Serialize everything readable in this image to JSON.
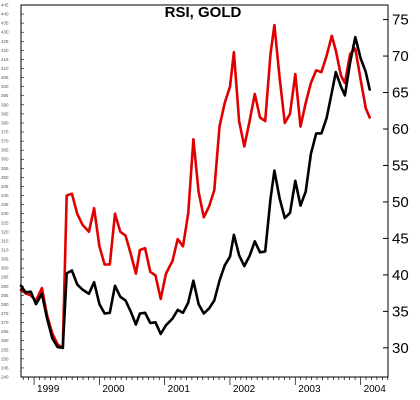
{
  "chart_data": {
    "type": "line",
    "title": "RSI, GOLD",
    "x_labels": [
      "1999",
      "2000",
      "2001",
      "2002",
      "2003",
      "2004"
    ],
    "x_start": 1998.8,
    "x_end": 2004.42,
    "y_right": {
      "min": 26,
      "max": 77,
      "ticks": [
        30,
        35,
        40,
        45,
        50,
        55,
        60,
        65,
        70,
        75
      ]
    },
    "y_left": {
      "min": 240,
      "max": 445,
      "step": 5
    },
    "series": [
      {
        "color": "#e00000",
        "axis": "left",
        "points": [
          [
            1998.8,
            288
          ],
          [
            1998.87,
            286
          ],
          [
            1998.95,
            285
          ],
          [
            1999.03,
            282
          ],
          [
            1999.12,
            289
          ],
          [
            1999.2,
            274
          ],
          [
            1999.28,
            264
          ],
          [
            1999.36,
            258
          ],
          [
            1999.44,
            256
          ],
          [
            1999.5,
            340
          ],
          [
            1999.58,
            341
          ],
          [
            1999.66,
            330
          ],
          [
            1999.74,
            324
          ],
          [
            1999.84,
            320
          ],
          [
            1999.92,
            333
          ],
          [
            2000.0,
            312
          ],
          [
            2000.08,
            302
          ],
          [
            2000.16,
            302
          ],
          [
            2000.24,
            330
          ],
          [
            2000.32,
            320
          ],
          [
            2000.4,
            318
          ],
          [
            2000.48,
            308
          ],
          [
            2000.56,
            297
          ],
          [
            2000.62,
            310
          ],
          [
            2000.7,
            311
          ],
          [
            2000.78,
            298
          ],
          [
            2000.86,
            296
          ],
          [
            2000.94,
            283
          ],
          [
            2001.02,
            297
          ],
          [
            2001.12,
            304
          ],
          [
            2001.2,
            316
          ],
          [
            2001.28,
            312
          ],
          [
            2001.36,
            330
          ],
          [
            2001.44,
            371
          ],
          [
            2001.52,
            342
          ],
          [
            2001.6,
            328
          ],
          [
            2001.68,
            334
          ],
          [
            2001.76,
            343
          ],
          [
            2001.84,
            378
          ],
          [
            2001.92,
            391
          ],
          [
            2002.0,
            400
          ],
          [
            2002.06,
            419
          ],
          [
            2002.14,
            381
          ],
          [
            2002.22,
            367
          ],
          [
            2002.3,
            381
          ],
          [
            2002.38,
            396
          ],
          [
            2002.46,
            383
          ],
          [
            2002.54,
            381
          ],
          [
            2002.62,
            418
          ],
          [
            2002.68,
            434
          ],
          [
            2002.76,
            405
          ],
          [
            2002.84,
            380
          ],
          [
            2002.92,
            385
          ],
          [
            2003.0,
            407
          ],
          [
            2003.08,
            378
          ],
          [
            2003.16,
            391
          ],
          [
            2003.24,
            402
          ],
          [
            2003.32,
            409
          ],
          [
            2003.4,
            408
          ],
          [
            2003.48,
            417
          ],
          [
            2003.56,
            428
          ],
          [
            2003.62,
            420
          ],
          [
            2003.7,
            406
          ],
          [
            2003.76,
            402
          ],
          [
            2003.84,
            418
          ],
          [
            2003.92,
            421
          ],
          [
            2004.0,
            404
          ],
          [
            2004.08,
            388
          ],
          [
            2004.14,
            383
          ]
        ]
      },
      {
        "color": "#000000",
        "axis": "right",
        "points": [
          [
            1998.8,
            38.5
          ],
          [
            1998.87,
            37.6
          ],
          [
            1998.95,
            37.7
          ],
          [
            1999.03,
            36.0
          ],
          [
            1999.12,
            37.4
          ],
          [
            1999.2,
            34.0
          ],
          [
            1999.28,
            31.3
          ],
          [
            1999.36,
            30.1
          ],
          [
            1999.44,
            30.0
          ],
          [
            1999.5,
            40.2
          ],
          [
            1999.58,
            40.6
          ],
          [
            1999.66,
            38.7
          ],
          [
            1999.74,
            38.0
          ],
          [
            1999.84,
            37.4
          ],
          [
            1999.92,
            39.0
          ],
          [
            2000.0,
            36.0
          ],
          [
            2000.08,
            34.7
          ],
          [
            2000.16,
            34.8
          ],
          [
            2000.24,
            38.5
          ],
          [
            2000.32,
            37.0
          ],
          [
            2000.4,
            36.5
          ],
          [
            2000.48,
            35.0
          ],
          [
            2000.56,
            33.2
          ],
          [
            2000.62,
            34.7
          ],
          [
            2000.7,
            34.8
          ],
          [
            2000.78,
            33.4
          ],
          [
            2000.86,
            33.5
          ],
          [
            2000.94,
            31.9
          ],
          [
            2001.02,
            33.1
          ],
          [
            2001.12,
            34.0
          ],
          [
            2001.2,
            35.2
          ],
          [
            2001.28,
            34.8
          ],
          [
            2001.36,
            36.2
          ],
          [
            2001.44,
            39.2
          ],
          [
            2001.52,
            36.0
          ],
          [
            2001.6,
            34.7
          ],
          [
            2001.68,
            35.4
          ],
          [
            2001.76,
            36.5
          ],
          [
            2001.84,
            39.2
          ],
          [
            2001.92,
            41.3
          ],
          [
            2002.0,
            42.5
          ],
          [
            2002.06,
            45.5
          ],
          [
            2002.14,
            42.7
          ],
          [
            2002.22,
            41.2
          ],
          [
            2002.3,
            42.6
          ],
          [
            2002.38,
            44.6
          ],
          [
            2002.46,
            43.1
          ],
          [
            2002.54,
            43.2
          ],
          [
            2002.62,
            50.4
          ],
          [
            2002.68,
            54.3
          ],
          [
            2002.76,
            50.5
          ],
          [
            2002.84,
            47.8
          ],
          [
            2002.92,
            48.5
          ],
          [
            2003.0,
            52.9
          ],
          [
            2003.08,
            49.5
          ],
          [
            2003.16,
            51.4
          ],
          [
            2003.24,
            56.6
          ],
          [
            2003.32,
            59.4
          ],
          [
            2003.4,
            59.4
          ],
          [
            2003.48,
            61.5
          ],
          [
            2003.56,
            65.0
          ],
          [
            2003.62,
            67.8
          ],
          [
            2003.7,
            65.8
          ],
          [
            2003.76,
            64.6
          ],
          [
            2003.84,
            69.1
          ],
          [
            2003.92,
            72.6
          ],
          [
            2004.0,
            69.7
          ],
          [
            2004.08,
            67.8
          ],
          [
            2004.14,
            65.4
          ]
        ]
      }
    ]
  }
}
